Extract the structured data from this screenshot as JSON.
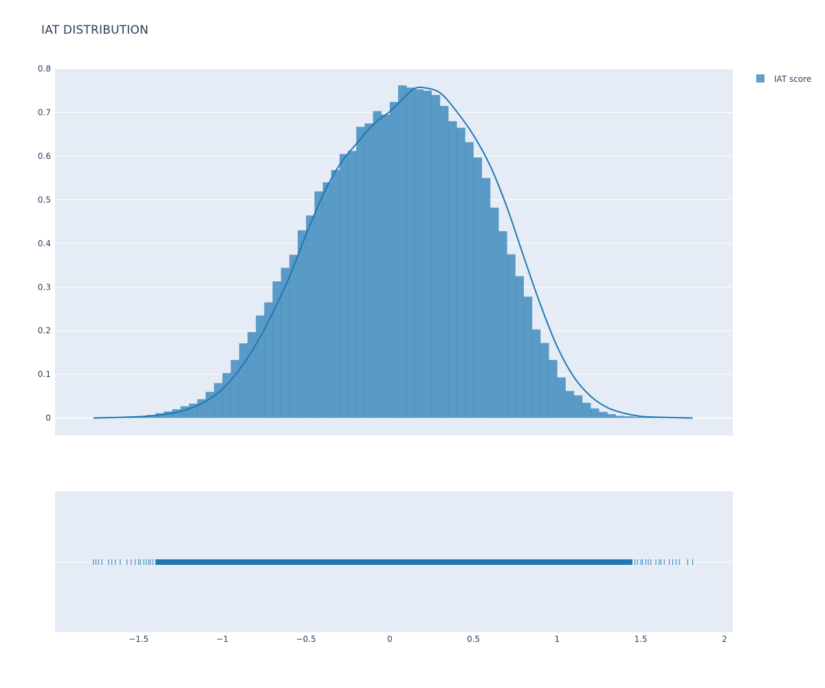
{
  "chart_data": {
    "type": "bar",
    "title": "IAT DISTRIBUTION",
    "xlabel": "",
    "ylabel": "",
    "legend_placement": "top-right",
    "grid": true,
    "xlim": [
      -2.0,
      2.05
    ],
    "ylim": [
      -0.04,
      0.8
    ],
    "x_ticks": [
      -1.5,
      -1,
      -0.5,
      0,
      0.5,
      1,
      1.5,
      2
    ],
    "x_tick_labels": [
      "−1.5",
      "−1",
      "−0.5",
      "0",
      "0.5",
      "1",
      "1.5",
      "2"
    ],
    "y_ticks": [
      0,
      0.1,
      0.2,
      0.3,
      0.4,
      0.5,
      0.6,
      0.7,
      0.8
    ],
    "y_tick_labels": [
      "0",
      "0.1",
      "0.2",
      "0.3",
      "0.4",
      "0.5",
      "0.6",
      "0.7",
      "0.8"
    ],
    "series": [
      {
        "name": "IAT score",
        "kind": "histogram",
        "color": "#1f77b4",
        "bin_width": 0.05,
        "bin_start": -1.75,
        "values": [
          0.001,
          0.002,
          0.002,
          0.003,
          0.004,
          0.005,
          0.007,
          0.011,
          0.015,
          0.02,
          0.027,
          0.033,
          0.043,
          0.06,
          0.08,
          0.103,
          0.133,
          0.171,
          0.197,
          0.235,
          0.265,
          0.313,
          0.344,
          0.374,
          0.43,
          0.464,
          0.519,
          0.54,
          0.568,
          0.605,
          0.612,
          0.667,
          0.675,
          0.703,
          0.695,
          0.724,
          0.762,
          0.757,
          0.753,
          0.75,
          0.74,
          0.715,
          0.68,
          0.665,
          0.632,
          0.597,
          0.55,
          0.482,
          0.428,
          0.375,
          0.325,
          0.278,
          0.203,
          0.172,
          0.133,
          0.093,
          0.062,
          0.052,
          0.035,
          0.022,
          0.014,
          0.009,
          0.005,
          0.004,
          0.003,
          0.002,
          0.002,
          0.001,
          0.001,
          0.001,
          0.001
        ]
      },
      {
        "name": "IAT score",
        "kind": "kde",
        "color": "#1f77b4",
        "x": [
          -1.77,
          -1.5,
          -1.4,
          -1.3,
          -1.2,
          -1.1,
          -1.0,
          -0.9,
          -0.8,
          -0.7,
          -0.6,
          -0.5,
          -0.4,
          -0.3,
          -0.2,
          -0.1,
          0.0,
          0.1,
          0.15,
          0.2,
          0.3,
          0.4,
          0.5,
          0.6,
          0.7,
          0.8,
          0.9,
          1.0,
          1.1,
          1.2,
          1.3,
          1.4,
          1.5,
          1.6,
          1.81
        ],
        "y": [
          0.0,
          0.003,
          0.006,
          0.011,
          0.021,
          0.038,
          0.066,
          0.11,
          0.168,
          0.24,
          0.323,
          0.42,
          0.51,
          0.58,
          0.628,
          0.672,
          0.702,
          0.74,
          0.755,
          0.757,
          0.745,
          0.702,
          0.648,
          0.578,
          0.483,
          0.37,
          0.26,
          0.164,
          0.094,
          0.05,
          0.024,
          0.011,
          0.004,
          0.002,
          0.0
        ]
      },
      {
        "name": "IAT score",
        "kind": "rug",
        "color": "#1f77b4",
        "dense_range": [
          -1.4,
          1.45
        ],
        "points": [
          -1.77,
          -1.755,
          -1.74,
          -1.72,
          -1.68,
          -1.66,
          -1.64,
          -1.61,
          -1.57,
          -1.545,
          -1.52,
          -1.5,
          -1.49,
          -1.47,
          -1.455,
          -1.44,
          -1.43,
          -1.415,
          1.465,
          1.48,
          1.5,
          1.51,
          1.53,
          1.545,
          1.56,
          1.59,
          1.61,
          1.62,
          1.64,
          1.67,
          1.69,
          1.71,
          1.73,
          1.78,
          1.81
        ]
      }
    ]
  }
}
